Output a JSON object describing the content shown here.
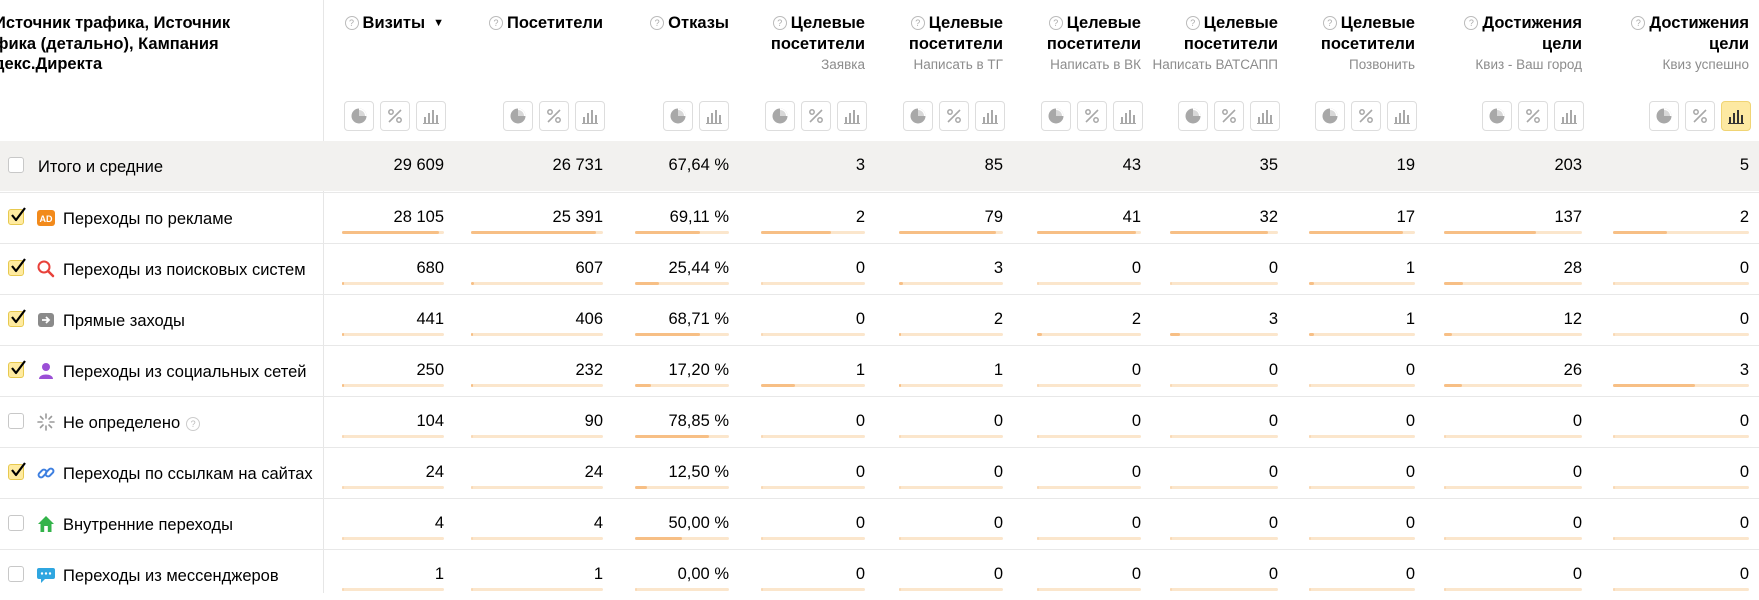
{
  "header": {
    "dimension_title": "Источник трафика, Источник\nфика (детально), Кампания\nдекс.Директа",
    "columns": [
      {
        "title": "Визиты",
        "subtitle": "",
        "sort": "▼",
        "tools": [
          "pie",
          "percent",
          "bar"
        ]
      },
      {
        "title": "Посетители",
        "subtitle": "",
        "tools": [
          "pie",
          "percent",
          "bar"
        ]
      },
      {
        "title": "Отказы",
        "subtitle": "",
        "tools": [
          "pie",
          "bar"
        ]
      },
      {
        "title": "Целевые посетители",
        "subtitle": "Заявка",
        "tools": [
          "pie",
          "percent",
          "bar"
        ]
      },
      {
        "title": "Целевые посетители",
        "subtitle": "Написать в ТГ",
        "tools": [
          "pie",
          "percent",
          "bar"
        ]
      },
      {
        "title": "Целевые посетители",
        "subtitle": "Написать в ВК",
        "tools": [
          "pie",
          "percent",
          "bar"
        ]
      },
      {
        "title": "Целевые посетители",
        "subtitle": "Написать ВАТСАПП",
        "tools": [
          "pie",
          "percent",
          "bar"
        ]
      },
      {
        "title": "Целевые посетители",
        "subtitle": "Позвонить",
        "tools": [
          "pie",
          "percent",
          "bar"
        ]
      },
      {
        "title": "Достижения цели",
        "subtitle": "Квиз - Ваш город",
        "tools": [
          "pie",
          "percent",
          "bar"
        ]
      },
      {
        "title": "Достижения цели",
        "subtitle": "Квиз успешно",
        "tools": [
          "pie",
          "percent",
          "bar"
        ],
        "active_tool": "bar"
      }
    ]
  },
  "total": {
    "label": "Итого и средние",
    "values": [
      "29 609",
      "26 731",
      "67,64 %",
      "3",
      "85",
      "43",
      "35",
      "19",
      "203",
      "5"
    ]
  },
  "rows": [
    {
      "label": "Переходы по рекламе",
      "icon": "ad-icon",
      "checked": true,
      "values": [
        "28 105",
        "25 391",
        "69,11 %",
        "2",
        "79",
        "41",
        "32",
        "17",
        "137",
        "2"
      ],
      "fractions": [
        0.95,
        0.95,
        0.69,
        0.67,
        0.93,
        0.95,
        0.91,
        0.89,
        0.67,
        0.4
      ]
    },
    {
      "label": "Переходы из поисковых систем",
      "icon": "search-icon",
      "checked": true,
      "values": [
        "680",
        "607",
        "25,44 %",
        "0",
        "3",
        "0",
        "0",
        "1",
        "28",
        "0"
      ],
      "fractions": [
        0.02,
        0.02,
        0.25,
        0,
        0.04,
        0,
        0,
        0.05,
        0.14,
        0
      ]
    },
    {
      "label": "Прямые заходы",
      "icon": "direct-icon",
      "checked": true,
      "values": [
        "441",
        "406",
        "68,71 %",
        "0",
        "2",
        "2",
        "3",
        "1",
        "12",
        "0"
      ],
      "fractions": [
        0.015,
        0.015,
        0.69,
        0,
        0.02,
        0.05,
        0.09,
        0.05,
        0.06,
        0
      ]
    },
    {
      "label": "Переходы из социальных сетей",
      "icon": "social-icon",
      "checked": true,
      "values": [
        "250",
        "232",
        "17,20 %",
        "1",
        "1",
        "0",
        "0",
        "0",
        "26",
        "3"
      ],
      "fractions": [
        0.01,
        0.01,
        0.17,
        0.33,
        0.01,
        0,
        0,
        0,
        0.13,
        0.6
      ]
    },
    {
      "label": "Не определено",
      "icon": "undefined-icon",
      "checked": false,
      "help": "?",
      "values": [
        "104",
        "90",
        "78,85 %",
        "0",
        "0",
        "0",
        "0",
        "0",
        "0",
        "0"
      ],
      "fractions": [
        0,
        0,
        0.79,
        0,
        0,
        0,
        0,
        0,
        0,
        0
      ]
    },
    {
      "label": "Переходы по ссылкам на сайтах",
      "icon": "link-icon",
      "checked": true,
      "values": [
        "24",
        "24",
        "12,50 %",
        "0",
        "0",
        "0",
        "0",
        "0",
        "0",
        "0"
      ],
      "fractions": [
        0,
        0,
        0.125,
        0,
        0,
        0,
        0,
        0,
        0,
        0
      ]
    },
    {
      "label": "Внутренние переходы",
      "icon": "home-icon",
      "checked": false,
      "values": [
        "4",
        "4",
        "50,00 %",
        "0",
        "0",
        "0",
        "0",
        "0",
        "0",
        "0"
      ],
      "fractions": [
        0,
        0,
        0.5,
        0,
        0,
        0,
        0,
        0,
        0,
        0
      ]
    },
    {
      "label": "Переходы из мессенджеров",
      "icon": "messenger-icon",
      "checked": false,
      "values": [
        "1",
        "1",
        "0,00 %",
        "0",
        "0",
        "0",
        "0",
        "0",
        "0",
        "0"
      ],
      "fractions": [
        0,
        0,
        0,
        0,
        0,
        0,
        0,
        0,
        0,
        0
      ]
    }
  ],
  "colors": {
    "bar_fill": "#f7bf85",
    "bar_track": "#fbe6cc",
    "checkbox_checked": "#ffeba0",
    "total_row_bg": "#f2f1ef"
  }
}
